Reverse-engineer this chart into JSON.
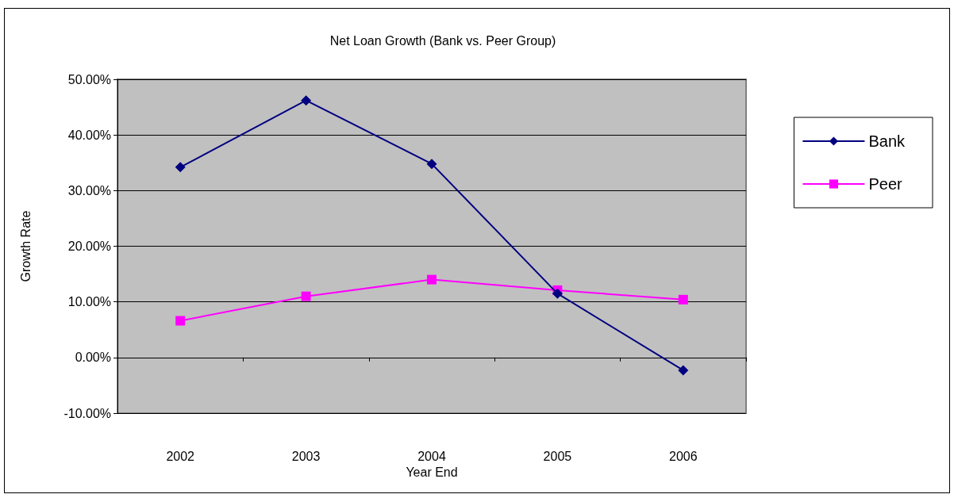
{
  "chart_data": {
    "type": "line",
    "title": "Net Loan Growth (Bank vs. Peer Group)",
    "xlabel": "Year End",
    "ylabel": "Growth Rate",
    "categories": [
      "2002",
      "2003",
      "2004",
      "2005",
      "2006"
    ],
    "series": [
      {
        "name": "Bank",
        "color": "#000080",
        "marker": "diamond",
        "values": [
          34.2,
          46.2,
          34.8,
          11.5,
          -2.3
        ]
      },
      {
        "name": "Peer",
        "color": "#ff00ff",
        "marker": "square",
        "values": [
          6.6,
          11.0,
          14.0,
          12.1,
          10.4
        ]
      }
    ],
    "ylim": [
      -10,
      50
    ],
    "yticks": [
      {
        "value": -10,
        "label": "-10.00%"
      },
      {
        "value": 0,
        "label": "0.00%"
      },
      {
        "value": 10,
        "label": "10.00%"
      },
      {
        "value": 20,
        "label": "20.00%"
      },
      {
        "value": 30,
        "label": "30.00%"
      },
      {
        "value": 40,
        "label": "40.00%"
      },
      {
        "value": 50,
        "label": "50.00%"
      }
    ],
    "grid": "y",
    "legend": "right",
    "line_style": "solid"
  }
}
